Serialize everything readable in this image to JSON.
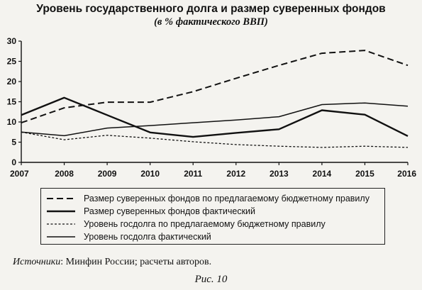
{
  "chart_data": {
    "type": "line",
    "title": "Уровень государственного долга и размер суверенных фондов",
    "subtitle": "(в % фактического ВВП)",
    "x": [
      "2007",
      "2008",
      "2009",
      "2010",
      "2011",
      "2012",
      "2013",
      "2014",
      "2015",
      "2016"
    ],
    "ylim": [
      0,
      30
    ],
    "yticks": [
      "0",
      "5",
      "10",
      "15",
      "20",
      "25",
      "30"
    ],
    "grid": false,
    "legend_position": "bottom",
    "series": [
      {
        "name": "Размер суверенных фондов по предлагаемому бюджетному правилу",
        "style": "dashed-long",
        "values": [
          9.8,
          13.5,
          14.9,
          14.9,
          17.5,
          20.8,
          24.0,
          27.0,
          27.7,
          24.0
        ]
      },
      {
        "name": "Размер суверенных фондов фактический",
        "style": "solid-thick",
        "values": [
          11.7,
          16.0,
          11.7,
          7.4,
          6.3,
          7.3,
          8.2,
          12.9,
          11.8,
          6.5
        ]
      },
      {
        "name": "Уровень госдолга по предлагаемому бюджетному правилу",
        "style": "dotted",
        "values": [
          7.5,
          5.6,
          6.7,
          6.0,
          5.1,
          4.4,
          4.0,
          3.7,
          4.0,
          3.7
        ]
      },
      {
        "name": "Уровень госдолга фактический",
        "style": "solid-thin",
        "values": [
          7.5,
          6.6,
          8.5,
          9.1,
          9.8,
          10.5,
          11.3,
          14.3,
          14.7,
          13.9
        ]
      }
    ]
  },
  "source": {
    "label": "Источники",
    "text": ": Минфин России; расчеты авторов."
  },
  "figure_caption": "Рис. 10"
}
